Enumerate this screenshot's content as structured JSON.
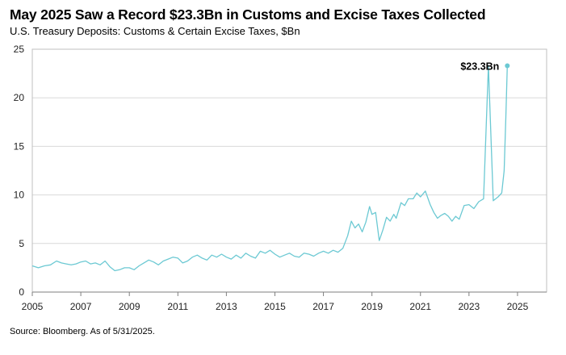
{
  "title": "May 2025 Saw a Record $23.3Bn in Customs and Excise Taxes Collected",
  "subtitle": "U.S. Treasury Deposits: Customs & Certain Excise Taxes, $Bn",
  "source": "Source: Bloomberg. As of 5/31/2025.",
  "chart_data": {
    "type": "line",
    "title": "May 2025 Saw a Record $23.3Bn in Customs and Excise Taxes Collected",
    "subtitle": "U.S. Treasury Deposits: Customs & Certain Excise Taxes, $Bn",
    "xlabel": "",
    "ylabel": "",
    "xlim": [
      2005,
      2026.2
    ],
    "ylim": [
      0,
      25
    ],
    "x_ticks": [
      2005,
      2007,
      2009,
      2011,
      2013,
      2015,
      2017,
      2019,
      2021,
      2023,
      2025
    ],
    "y_ticks": [
      0,
      5,
      10,
      15,
      20,
      25
    ],
    "grid": "horizontal",
    "line_color": "#6cc9d3",
    "grid_color": "#d9d9d9",
    "annotation": {
      "text": "$23.3Bn",
      "x": 2024.58,
      "y": 23.3
    },
    "series": [
      {
        "x": [
          2005.0,
          2005.25,
          2005.5,
          2005.75,
          2006.0,
          2006.2,
          2006.4,
          2006.6,
          2006.8,
          2007.0,
          2007.2,
          2007.4,
          2007.6,
          2007.8,
          2008.0,
          2008.2,
          2008.4,
          2008.6,
          2008.8,
          2009.0,
          2009.2,
          2009.4,
          2009.6,
          2009.8,
          2010.0,
          2010.2,
          2010.4,
          2010.6,
          2010.8,
          2011.0,
          2011.2,
          2011.4,
          2011.6,
          2011.8,
          2012.0,
          2012.2,
          2012.4,
          2012.6,
          2012.8,
          2013.0,
          2013.2,
          2013.4,
          2013.6,
          2013.8,
          2014.0,
          2014.2,
          2014.4,
          2014.6,
          2014.8,
          2015.0,
          2015.2,
          2015.4,
          2015.6,
          2015.8,
          2016.0,
          2016.2,
          2016.4,
          2016.6,
          2016.8,
          2017.0,
          2017.2,
          2017.4,
          2017.6,
          2017.8,
          2018.0,
          2018.15,
          2018.3,
          2018.45,
          2018.6,
          2018.75,
          2018.9,
          2019.0,
          2019.15,
          2019.3,
          2019.45,
          2019.6,
          2019.75,
          2019.9,
          2020.0,
          2020.2,
          2020.35,
          2020.5,
          2020.7,
          2020.85,
          2021.0,
          2021.2,
          2021.4,
          2021.55,
          2021.7,
          2021.85,
          2022.0,
          2022.15,
          2022.3,
          2022.45,
          2022.6,
          2022.8,
          2023.0,
          2023.2,
          2023.4,
          2023.6,
          2023.8,
          2024.0,
          2024.2,
          2024.35,
          2024.45,
          2024.52,
          2024.58
        ],
        "values": [
          2.7,
          2.5,
          2.7,
          2.8,
          3.2,
          3.0,
          2.9,
          2.8,
          2.9,
          3.1,
          3.2,
          2.9,
          3.0,
          2.8,
          3.2,
          2.6,
          2.2,
          2.3,
          2.5,
          2.5,
          2.3,
          2.7,
          3.0,
          3.3,
          3.1,
          2.8,
          3.2,
          3.4,
          3.6,
          3.5,
          3.0,
          3.2,
          3.6,
          3.8,
          3.5,
          3.3,
          3.8,
          3.6,
          3.9,
          3.6,
          3.4,
          3.8,
          3.5,
          4.0,
          3.7,
          3.5,
          4.2,
          4.0,
          4.3,
          3.9,
          3.6,
          3.8,
          4.0,
          3.7,
          3.6,
          4.0,
          3.9,
          3.7,
          4.0,
          4.2,
          4.0,
          4.3,
          4.1,
          4.5,
          5.8,
          7.3,
          6.6,
          7.0,
          6.2,
          7.2,
          8.8,
          8.0,
          8.2,
          5.3,
          6.4,
          7.7,
          7.3,
          8.0,
          7.6,
          9.2,
          8.9,
          9.6,
          9.6,
          10.2,
          9.8,
          10.4,
          9.0,
          8.2,
          7.6,
          7.9,
          8.1,
          7.8,
          7.3,
          7.8,
          7.5,
          8.9,
          9.0,
          8.6,
          9.3,
          9.6,
          23.3,
          9.4,
          9.8,
          10.2,
          12.5,
          18.0,
          23.3
        ]
      }
    ]
  }
}
